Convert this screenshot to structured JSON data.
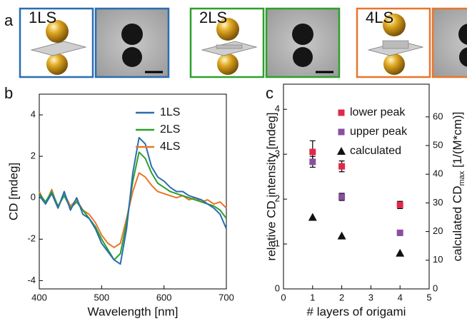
{
  "panel_labels": [
    "a",
    "b",
    "c"
  ],
  "panel_a": {
    "labels": [
      "1LS",
      "2LS",
      "4LS"
    ]
  },
  "chart_data": [
    {
      "type": "line",
      "xlabel": "Wavelength [nm]",
      "ylabel": "CD [mdeg]",
      "x": [
        400,
        410,
        420,
        430,
        440,
        450,
        460,
        470,
        480,
        490,
        500,
        510,
        520,
        530,
        540,
        550,
        560,
        570,
        580,
        590,
        600,
        610,
        620,
        630,
        640,
        650,
        660,
        670,
        680,
        690,
        700
      ],
      "series": [
        {
          "name": "1LS",
          "color": "#2a6db0",
          "values": [
            0.1,
            -0.3,
            0.2,
            -0.5,
            0.3,
            -0.6,
            0.0,
            -0.8,
            -1.0,
            -1.5,
            -2.2,
            -2.6,
            -3.0,
            -3.2,
            -1.5,
            1.2,
            2.9,
            2.6,
            1.5,
            1.0,
            0.8,
            0.5,
            0.3,
            0.3,
            0.1,
            0.0,
            -0.1,
            -0.3,
            -0.5,
            -0.8,
            -1.5
          ]
        },
        {
          "name": "2LS",
          "color": "#2ca02c",
          "values": [
            0.2,
            -0.2,
            0.3,
            -0.4,
            0.1,
            -0.5,
            -0.2,
            -0.6,
            -1.0,
            -1.4,
            -2.0,
            -2.5,
            -3.0,
            -2.7,
            -1.2,
            0.8,
            2.2,
            1.9,
            1.2,
            0.7,
            0.5,
            0.3,
            0.2,
            0.1,
            0.0,
            -0.1,
            -0.2,
            -0.3,
            -0.4,
            -0.6,
            -1.0
          ]
        },
        {
          "name": "4LS",
          "color": "#e8762b",
          "values": [
            0.3,
            -0.3,
            0.4,
            -0.5,
            0.2,
            -0.4,
            -0.1,
            -0.6,
            -0.8,
            -1.2,
            -1.8,
            -2.2,
            -2.4,
            -2.2,
            -1.0,
            0.3,
            1.2,
            1.0,
            0.6,
            0.3,
            0.2,
            0.1,
            0.0,
            0.1,
            -0.1,
            0.0,
            -0.2,
            -0.1,
            -0.3,
            -0.2,
            -0.5
          ]
        }
      ],
      "xlim": [
        400,
        700
      ],
      "xticks": [
        400,
        500,
        600,
        700
      ],
      "ylim": [
        -4.4,
        5
      ],
      "yticks": [
        -4,
        -2,
        0,
        2,
        4
      ]
    },
    {
      "type": "scatter",
      "xlabel": "# layers of origami",
      "ylabel": "relative CD intensity [mdeg]",
      "y2label": [
        "calculated CD",
        "max",
        " [1/(M*cm)]"
      ],
      "x": [
        1,
        2,
        4
      ],
      "series": [
        {
          "name": "lower peak",
          "color": "#e0294a",
          "marker": "square",
          "values": [
            3.05,
            2.73,
            1.87
          ],
          "errors": [
            0.25,
            0.12,
            0.08
          ]
        },
        {
          "name": "upper peak",
          "color": "#8a4fa0",
          "marker": "square",
          "values": [
            2.83,
            2.05,
            1.25
          ],
          "errors": [
            0.12,
            0.08,
            0.06
          ]
        },
        {
          "name": "calculated",
          "color": "#111111",
          "marker": "triangle",
          "axis": "y2",
          "values": [
            25,
            18.5,
            12.5
          ]
        }
      ],
      "xlim": [
        0,
        5
      ],
      "xticks": [
        0,
        1,
        2,
        3,
        4,
        5
      ],
      "ylim": [
        0,
        4.56
      ],
      "yticks": [
        0,
        1,
        2,
        3,
        4
      ],
      "y2lim": [
        0,
        71.4
      ],
      "y2ticks": [
        0,
        10,
        20,
        30,
        40,
        50,
        60
      ]
    }
  ]
}
